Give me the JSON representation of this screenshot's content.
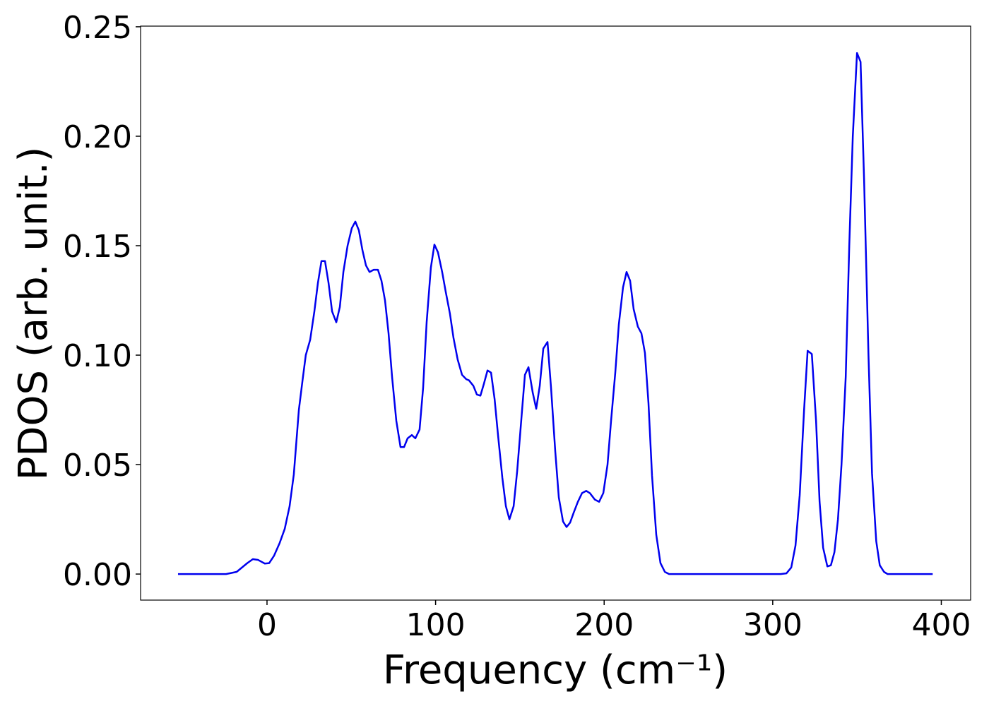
{
  "chart_data": {
    "type": "line",
    "xlabel": "Frequency (cm⁻¹)",
    "ylabel": "PDOS (arb. unit.)",
    "color": "#0000ee",
    "xlim": [
      -75.0,
      417.4
    ],
    "ylim": [
      -0.0119,
      0.2503
    ],
    "xticks": [
      0,
      100,
      200,
      300,
      400
    ],
    "yticks": [
      {
        "value": 0,
        "label": "0.00"
      },
      {
        "value": 0.05,
        "label": "0.05"
      },
      {
        "value": 0.1,
        "label": "0.10"
      },
      {
        "value": 0.15,
        "label": "0.15"
      },
      {
        "value": 0.2,
        "label": "0.20"
      },
      {
        "value": 0.25,
        "label": "0.25"
      }
    ],
    "x": [
      -52.8,
      -24.3,
      -18.0,
      -11.7,
      -8.4,
      -5.4,
      -1.3,
      1.3,
      4.2,
      7.5,
      10.5,
      13.4,
      15.9,
      18.9,
      21.0,
      23.0,
      25.6,
      28.1,
      30.2,
      32.3,
      34.4,
      36.5,
      38.6,
      41.1,
      43.2,
      45.3,
      47.8,
      50.3,
      52.4,
      54.5,
      56.6,
      58.7,
      60.8,
      63.3,
      65.8,
      67.9,
      70.0,
      72.1,
      74.2,
      76.7,
      79.2,
      81.3,
      83.4,
      85.9,
      88.0,
      90.5,
      92.6,
      94.7,
      97.2,
      99.3,
      101.4,
      103.9,
      106.0,
      108.5,
      110.6,
      113.1,
      115.7,
      118.2,
      119.8,
      122.4,
      124.5,
      126.6,
      128.7,
      130.8,
      132.9,
      135.0,
      137.1,
      139.6,
      141.7,
      143.8,
      146.3,
      148.4,
      150.9,
      153.0,
      155.1,
      157.6,
      159.7,
      161.8,
      163.9,
      166.4,
      168.5,
      171.0,
      173.1,
      175.6,
      177.7,
      179.8,
      181.9,
      184.4,
      186.9,
      189.4,
      191.5,
      194.5,
      197.0,
      199.5,
      202.0,
      204.1,
      206.6,
      208.7,
      211.2,
      213.3,
      215.4,
      217.5,
      220.0,
      222.1,
      224.2,
      226.3,
      228.4,
      230.9,
      233.4,
      236.0,
      238.5,
      304.7,
      308.1,
      311.0,
      313.5,
      316.0,
      318.6,
      320.7,
      323.2,
      325.7,
      327.8,
      329.9,
      332.4,
      334.5,
      336.6,
      338.7,
      340.8,
      343.3,
      345.4,
      347.5,
      350.0,
      352.1,
      354.2,
      356.8,
      358.9,
      361.4,
      363.5,
      366.0,
      368.1,
      394.9
    ],
    "values": [
      0,
      0,
      0.001,
      0.005,
      0.0068,
      0.0065,
      0.0048,
      0.005,
      0.0084,
      0.0142,
      0.0206,
      0.031,
      0.0455,
      0.075,
      0.088,
      0.1,
      0.107,
      0.12,
      0.133,
      0.143,
      0.143,
      0.133,
      0.12,
      0.115,
      0.122,
      0.138,
      0.15,
      0.158,
      0.161,
      0.157,
      0.148,
      0.141,
      0.138,
      0.139,
      0.139,
      0.134,
      0.125,
      0.11,
      0.09,
      0.07,
      0.058,
      0.058,
      0.062,
      0.0635,
      0.062,
      0.066,
      0.085,
      0.115,
      0.14,
      0.1505,
      0.147,
      0.138,
      0.129,
      0.119,
      0.108,
      0.098,
      0.091,
      0.089,
      0.0885,
      0.086,
      0.082,
      0.0815,
      0.087,
      0.093,
      0.092,
      0.08,
      0.063,
      0.044,
      0.031,
      0.025,
      0.031,
      0.047,
      0.071,
      0.091,
      0.0945,
      0.083,
      0.0755,
      0.086,
      0.103,
      0.106,
      0.085,
      0.056,
      0.035,
      0.024,
      0.0215,
      0.0235,
      0.028,
      0.033,
      0.037,
      0.038,
      0.037,
      0.034,
      0.033,
      0.037,
      0.05,
      0.07,
      0.092,
      0.114,
      0.131,
      0.138,
      0.134,
      0.121,
      0.113,
      0.11,
      0.101,
      0.078,
      0.045,
      0.018,
      0.005,
      0.001,
      0,
      0,
      0.0003,
      0.003,
      0.013,
      0.036,
      0.075,
      0.102,
      0.1005,
      0.07,
      0.033,
      0.012,
      0.0035,
      0.004,
      0.01,
      0.025,
      0.05,
      0.09,
      0.15,
      0.2,
      0.238,
      0.234,
      0.18,
      0.1,
      0.046,
      0.015,
      0.004,
      0.001,
      0,
      0
    ]
  }
}
